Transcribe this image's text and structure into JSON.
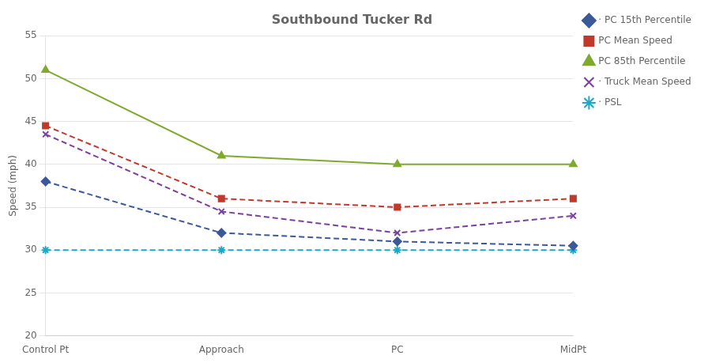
{
  "chart_data": {
    "type": "line",
    "title": "Southbound Tucker Rd",
    "y_label": "Speed (mph)",
    "categories": [
      "Control Pt",
      "Approach",
      "PC",
      "MidPt"
    ],
    "series": [
      {
        "name": "· PC 15th Percentile",
        "color": "#3b5998",
        "line_style": "dashed",
        "marker": "diamond",
        "values": [
          38,
          32,
          31,
          30.5
        ]
      },
      {
        "name": "PC Mean Speed",
        "color": "#c0392b",
        "line_style": "dashed",
        "marker": "square",
        "values": [
          44.5,
          36,
          35,
          36
        ]
      },
      {
        "name": "PC 85th Percentile",
        "color": "#7faa2e",
        "line_style": "solid",
        "marker": "triangle",
        "values": [
          51,
          41,
          40,
          40
        ]
      },
      {
        "name": "· Truck Mean Speed",
        "color": "#7b3fa0",
        "line_style": "dashed",
        "marker": "x",
        "values": [
          43.5,
          34.5,
          32,
          34
        ]
      },
      {
        "name": "· PSL",
        "color": "#1ca8c8",
        "line_style": "dashed",
        "marker": "star",
        "values": [
          30,
          30,
          30,
          30
        ]
      }
    ],
    "ylim": [
      20,
      55
    ],
    "yticks": [
      20,
      25,
      30,
      35,
      40,
      45,
      50,
      55
    ],
    "grid": "y",
    "legend": "right"
  }
}
